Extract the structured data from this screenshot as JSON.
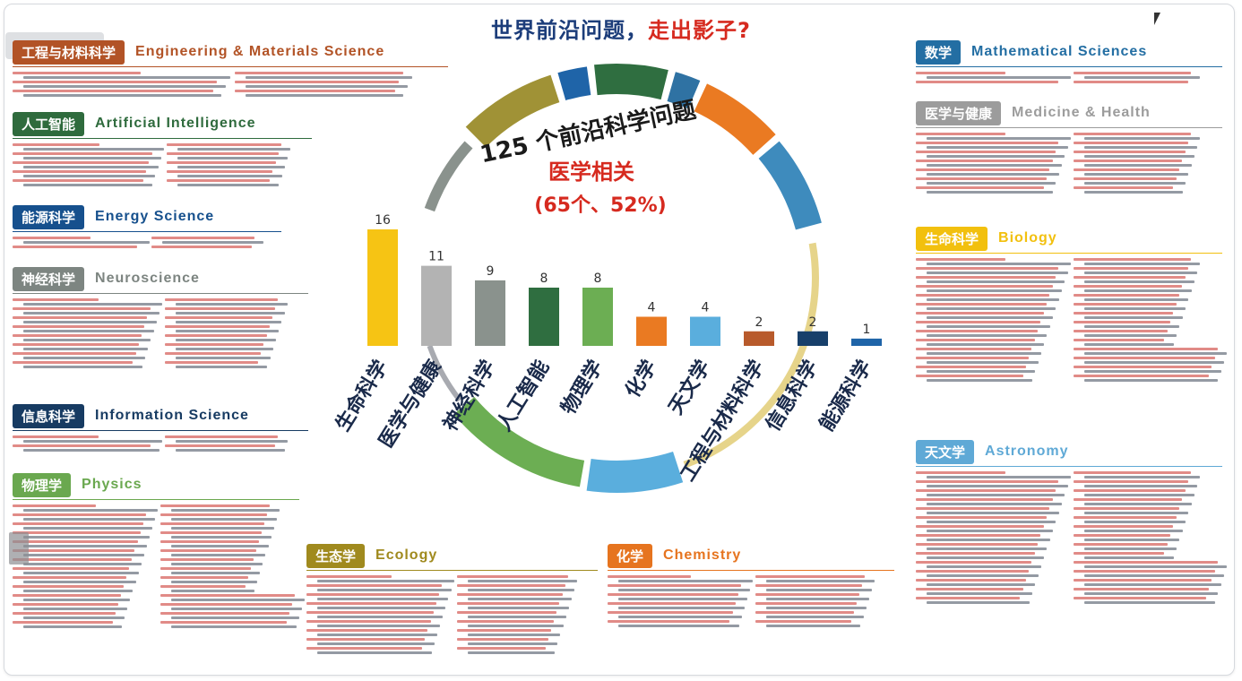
{
  "title": {
    "part1": "世界前沿问题，",
    "part2": "走出影子?"
  },
  "ring": {
    "heading": "125 个前沿科学问题",
    "subheading": "医学相关",
    "stat": "(65个、52%)"
  },
  "sections": [
    {
      "key": "engineering",
      "cn": "工程与材料科学",
      "en": "Engineering & Materials Science",
      "color": "#b25326"
    },
    {
      "key": "ai",
      "cn": "人工智能",
      "en": "Artificial Intelligence",
      "color": "#2f6b3d"
    },
    {
      "key": "energy",
      "cn": "能源科学",
      "en": "Energy Science",
      "color": "#16508d"
    },
    {
      "key": "neuro",
      "cn": "神经科学",
      "en": "Neuroscience",
      "color": "#7d8581"
    },
    {
      "key": "info",
      "cn": "信息科学",
      "en": "Information Science",
      "color": "#173b62"
    },
    {
      "key": "physics",
      "cn": "物理学",
      "en": "Physics",
      "color": "#6aa84f"
    },
    {
      "key": "ecology",
      "cn": "生态学",
      "en": "Ecology",
      "color": "#a08a1e"
    },
    {
      "key": "chemistry",
      "cn": "化学",
      "en": "Chemistry",
      "color": "#e6741f"
    },
    {
      "key": "math",
      "cn": "数学",
      "en": "Mathematical Sciences",
      "color": "#236ea3"
    },
    {
      "key": "medicine",
      "cn": "医学与健康",
      "en": "Medicine & Health",
      "color": "#9c9c9c"
    },
    {
      "key": "biology",
      "cn": "生命科学",
      "en": "Biology",
      "color": "#f2c00e"
    },
    {
      "key": "astronomy",
      "cn": "天文学",
      "en": "Astronomy",
      "color": "#5fa9d6"
    }
  ],
  "chart_data": {
    "type": "bar",
    "categories": [
      "生命科学",
      "医学与健康",
      "神经科学",
      "人工智能",
      "物理学",
      "化学",
      "天文学",
      "工程与材料科学",
      "信息科学",
      "能源科学"
    ],
    "values": [
      16,
      11,
      9,
      8,
      8,
      4,
      4,
      2,
      2,
      1
    ],
    "colors": [
      "#f6c414",
      "#b3b3b3",
      "#8a928d",
      "#2f6e40",
      "#6cae53",
      "#ea7a22",
      "#5aaedd",
      "#b85a2b",
      "#173f6a",
      "#1f64a8"
    ],
    "title": "125 个前沿科学问题",
    "xlabel": "",
    "ylabel": "",
    "ylim": [
      0,
      16
    ],
    "grid": false,
    "legend": "none"
  }
}
